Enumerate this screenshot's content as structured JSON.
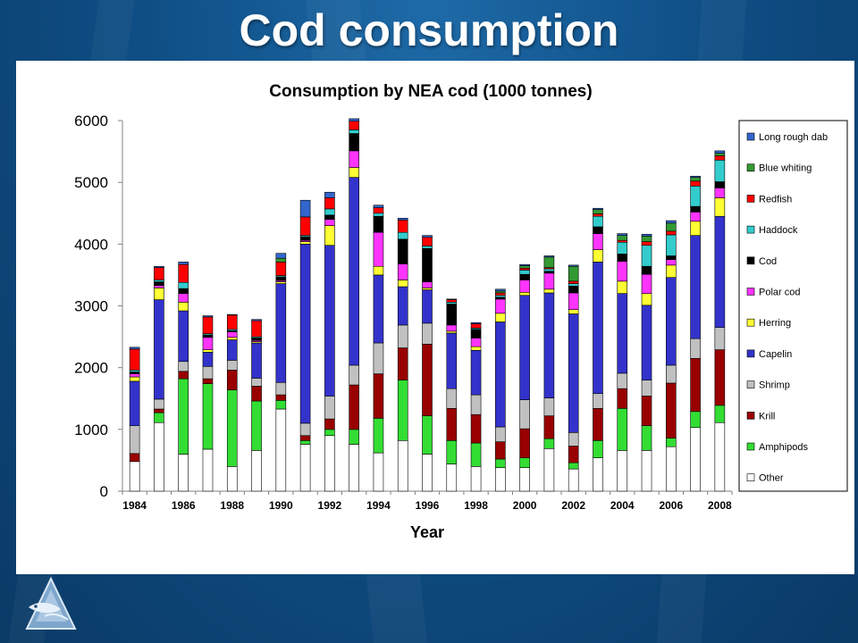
{
  "slide": {
    "title": "Cod consumption"
  },
  "chart_data": {
    "type": "bar",
    "stacked": true,
    "title": "Consumption by NEA cod (1000 tonnes)",
    "xlabel": "Year",
    "ylabel": "",
    "ylim": [
      0,
      6000
    ],
    "yticks": [
      "0",
      "1000",
      "2000",
      "3000",
      "4000",
      "5000",
      "6000"
    ],
    "xtick_labels": [
      "1984",
      "1986",
      "1988",
      "1990",
      "1992",
      "1994",
      "1996",
      "1998",
      "2000",
      "2002",
      "2004",
      "2006",
      "2008"
    ],
    "grid": false,
    "legend_position": "right",
    "categories": [
      "1984",
      "1985",
      "1986",
      "1987",
      "1988",
      "1989",
      "1990",
      "1991",
      "1992",
      "1993",
      "1994",
      "1995",
      "1996",
      "1997",
      "1998",
      "1999",
      "2000",
      "2001",
      "2002",
      "2003",
      "2004",
      "2005",
      "2006",
      "2007",
      "2008"
    ],
    "series": [
      {
        "name": "Other",
        "color": "#ffffff",
        "values": [
          480,
          1110,
          600,
          680,
          400,
          660,
          1330,
          760,
          900,
          760,
          620,
          820,
          600,
          440,
          400,
          380,
          380,
          690,
          360,
          540,
          660,
          660,
          720,
          1030,
          1110
        ]
      },
      {
        "name": "Amphipods",
        "color": "#33dd33",
        "values": [
          0,
          160,
          1220,
          1060,
          1240,
          800,
          140,
          60,
          100,
          240,
          560,
          980,
          620,
          380,
          380,
          140,
          160,
          160,
          100,
          280,
          680,
          400,
          140,
          260,
          280
        ]
      },
      {
        "name": "Krill",
        "color": "#990000",
        "values": [
          130,
          60,
          120,
          80,
          320,
          240,
          90,
          80,
          170,
          720,
          720,
          520,
          1160,
          520,
          460,
          280,
          470,
          370,
          270,
          520,
          320,
          480,
          890,
          860,
          900
        ]
      },
      {
        "name": "Shrimp",
        "color": "#c0c0c0",
        "values": [
          450,
          160,
          160,
          200,
          160,
          130,
          200,
          200,
          370,
          320,
          500,
          370,
          340,
          320,
          320,
          240,
          470,
          290,
          220,
          240,
          250,
          260,
          290,
          320,
          360
        ]
      },
      {
        "name": "Capelin",
        "color": "#3333cc",
        "values": [
          720,
          1610,
          820,
          230,
          330,
          570,
          1600,
          2900,
          2440,
          3040,
          1100,
          620,
          540,
          900,
          720,
          1700,
          1690,
          1700,
          1920,
          2130,
          1290,
          1210,
          1420,
          1670,
          1800
        ]
      },
      {
        "name": "Herring",
        "color": "#ffff33",
        "values": [
          70,
          190,
          140,
          40,
          40,
          20,
          30,
          40,
          320,
          160,
          140,
          110,
          30,
          30,
          60,
          140,
          50,
          60,
          70,
          200,
          200,
          190,
          200,
          230,
          300
        ]
      },
      {
        "name": "Polar cod",
        "color": "#ff33ff",
        "values": [
          50,
          40,
          140,
          200,
          90,
          20,
          20,
          20,
          100,
          270,
          550,
          260,
          100,
          100,
          140,
          230,
          200,
          260,
          270,
          260,
          320,
          310,
          90,
          150,
          160
        ]
      },
      {
        "name": "Cod",
        "color": "#000000",
        "values": [
          30,
          60,
          80,
          40,
          20,
          40,
          60,
          60,
          70,
          280,
          260,
          400,
          540,
          340,
          140,
          30,
          90,
          30,
          110,
          110,
          120,
          130,
          60,
          90,
          100
        ]
      },
      {
        "name": "Haddock",
        "color": "#33cccc",
        "values": [
          30,
          30,
          100,
          20,
          20,
          20,
          20,
          20,
          100,
          60,
          50,
          110,
          40,
          30,
          20,
          30,
          70,
          40,
          40,
          170,
          190,
          340,
          340,
          330,
          350
        ]
      },
      {
        "name": "Redfish",
        "color": "#ff0000",
        "values": [
          340,
          200,
          290,
          270,
          230,
          260,
          220,
          300,
          180,
          140,
          90,
          200,
          140,
          40,
          70,
          40,
          30,
          20,
          40,
          40,
          30,
          60,
          60,
          80,
          70
        ]
      },
      {
        "name": "Blue whiting",
        "color": "#339933",
        "values": [
          0,
          0,
          0,
          0,
          0,
          0,
          60,
          0,
          0,
          0,
          0,
          0,
          0,
          0,
          0,
          30,
          40,
          170,
          240,
          70,
          80,
          90,
          130,
          60,
          40
        ]
      },
      {
        "name": "Long rough dab",
        "color": "#3366cc",
        "values": [
          30,
          20,
          40,
          20,
          10,
          20,
          80,
          270,
          90,
          40,
          40,
          30,
          30,
          10,
          20,
          30,
          20,
          20,
          20,
          20,
          30,
          30,
          40,
          20,
          40
        ]
      }
    ]
  }
}
